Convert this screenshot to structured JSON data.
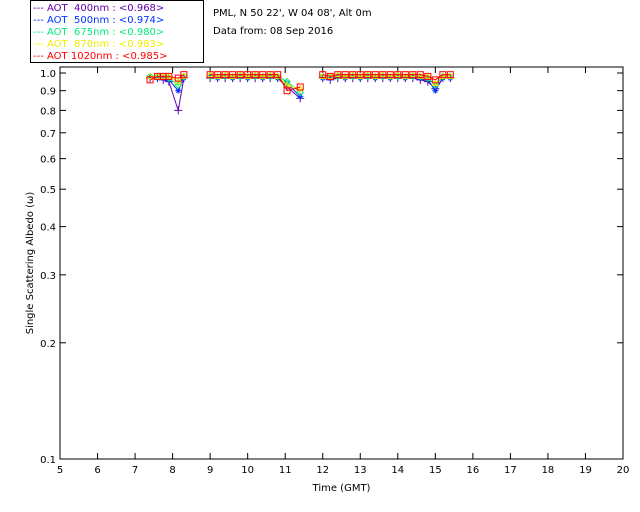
{
  "header": {
    "location": "PML, N 50 22', W 04 08', Alt 0m",
    "date": "Data from: 08 Sep 2016"
  },
  "chart_data": {
    "type": "line",
    "xlabel": "Time (GMT)",
    "ylabel": "Single Scattering Albedo (ω)",
    "xlim": [
      5,
      20
    ],
    "ylim": [
      0.1,
      1.0
    ],
    "yscale": "log",
    "xticks": [
      "5",
      "6",
      "7",
      "8",
      "9",
      "10",
      "11",
      "12",
      "13",
      "14",
      "15",
      "16",
      "17",
      "18",
      "19",
      "20"
    ],
    "yticks": [
      {
        "v": 1.0,
        "label": "1.0"
      },
      {
        "v": 0.9,
        "label": "0.9"
      },
      {
        "v": 0.8,
        "label": "0.8"
      },
      {
        "v": 0.7,
        "label": "0.7"
      },
      {
        "v": 0.6,
        "label": "0.6"
      },
      {
        "v": 0.5,
        "label": "0.5"
      },
      {
        "v": 0.4,
        "label": "0.4"
      },
      {
        "v": 0.3,
        "label": "0.3"
      },
      {
        "v": 0.2,
        "label": "0.2"
      },
      {
        "v": 0.1,
        "label": "0.1"
      }
    ],
    "x": [
      7.4,
      7.6,
      7.75,
      7.9,
      8.15,
      8.3,
      9.0,
      9.2,
      9.4,
      9.6,
      9.8,
      10.0,
      10.2,
      10.4,
      10.6,
      10.8,
      11.05,
      11.4,
      12.0,
      12.2,
      12.4,
      12.6,
      12.8,
      13.0,
      13.2,
      13.4,
      13.6,
      13.8,
      14.0,
      14.2,
      14.4,
      14.6,
      14.8,
      15.0,
      15.2,
      15.4
    ],
    "series": [
      {
        "name": "AOT  400nm : <0.968>",
        "label": "AOT  400nm : <0.968>",
        "color": "#6600aa",
        "marker": "plus",
        "values": [
          0.97,
          0.97,
          0.96,
          0.95,
          0.8,
          0.97,
          0.97,
          0.97,
          0.97,
          0.97,
          0.97,
          0.97,
          0.97,
          0.97,
          0.97,
          0.97,
          0.92,
          0.86,
          0.97,
          0.96,
          0.97,
          0.97,
          0.97,
          0.97,
          0.97,
          0.97,
          0.97,
          0.97,
          0.97,
          0.97,
          0.97,
          0.96,
          0.95,
          0.91,
          0.97,
          0.97
        ]
      },
      {
        "name": "AOT  500nm : <0.974>",
        "label": "AOT  500nm : <0.974>",
        "color": "#0033ff",
        "marker": "star",
        "values": [
          0.98,
          0.97,
          0.97,
          0.96,
          0.9,
          0.97,
          0.98,
          0.97,
          0.98,
          0.97,
          0.98,
          0.97,
          0.98,
          0.97,
          0.98,
          0.97,
          0.94,
          0.87,
          0.97,
          0.97,
          0.98,
          0.97,
          0.98,
          0.97,
          0.98,
          0.97,
          0.98,
          0.97,
          0.98,
          0.97,
          0.98,
          0.97,
          0.96,
          0.9,
          0.97,
          0.97
        ]
      },
      {
        "name": "AOT  675nm : <0.980>",
        "label": "AOT  675nm : <0.980>",
        "color": "#00ee77",
        "marker": "diamond",
        "values": [
          0.98,
          0.98,
          0.98,
          0.97,
          0.93,
          0.98,
          0.98,
          0.98,
          0.98,
          0.98,
          0.98,
          0.98,
          0.98,
          0.98,
          0.98,
          0.98,
          0.95,
          0.89,
          0.98,
          0.98,
          0.98,
          0.98,
          0.98,
          0.98,
          0.98,
          0.98,
          0.98,
          0.98,
          0.98,
          0.98,
          0.98,
          0.98,
          0.97,
          0.93,
          0.98,
          0.98
        ]
      },
      {
        "name": "AOT  870nm : <0.983>",
        "label": "AOT  870nm : <0.983>",
        "color": "#eeee00",
        "marker": "triangle",
        "values": [
          0.98,
          0.98,
          0.98,
          0.98,
          0.95,
          0.98,
          0.99,
          0.98,
          0.99,
          0.98,
          0.99,
          0.98,
          0.99,
          0.98,
          0.99,
          0.98,
          0.93,
          0.91,
          0.98,
          0.98,
          0.99,
          0.98,
          0.99,
          0.98,
          0.99,
          0.98,
          0.99,
          0.98,
          0.99,
          0.98,
          0.99,
          0.98,
          0.98,
          0.94,
          0.98,
          0.98
        ]
      },
      {
        "name": "AOT 1020nm : <0.985>",
        "label": "AOT 1020nm : <0.985>",
        "color": "#ff0000",
        "marker": "square",
        "values": [
          0.96,
          0.98,
          0.98,
          0.98,
          0.97,
          0.99,
          0.99,
          0.99,
          0.99,
          0.99,
          0.99,
          0.99,
          0.99,
          0.99,
          0.99,
          0.99,
          0.9,
          0.92,
          0.99,
          0.98,
          0.99,
          0.99,
          0.99,
          0.99,
          0.99,
          0.99,
          0.99,
          0.99,
          0.99,
          0.99,
          0.99,
          0.99,
          0.98,
          0.96,
          0.99,
          0.99
        ]
      }
    ]
  }
}
